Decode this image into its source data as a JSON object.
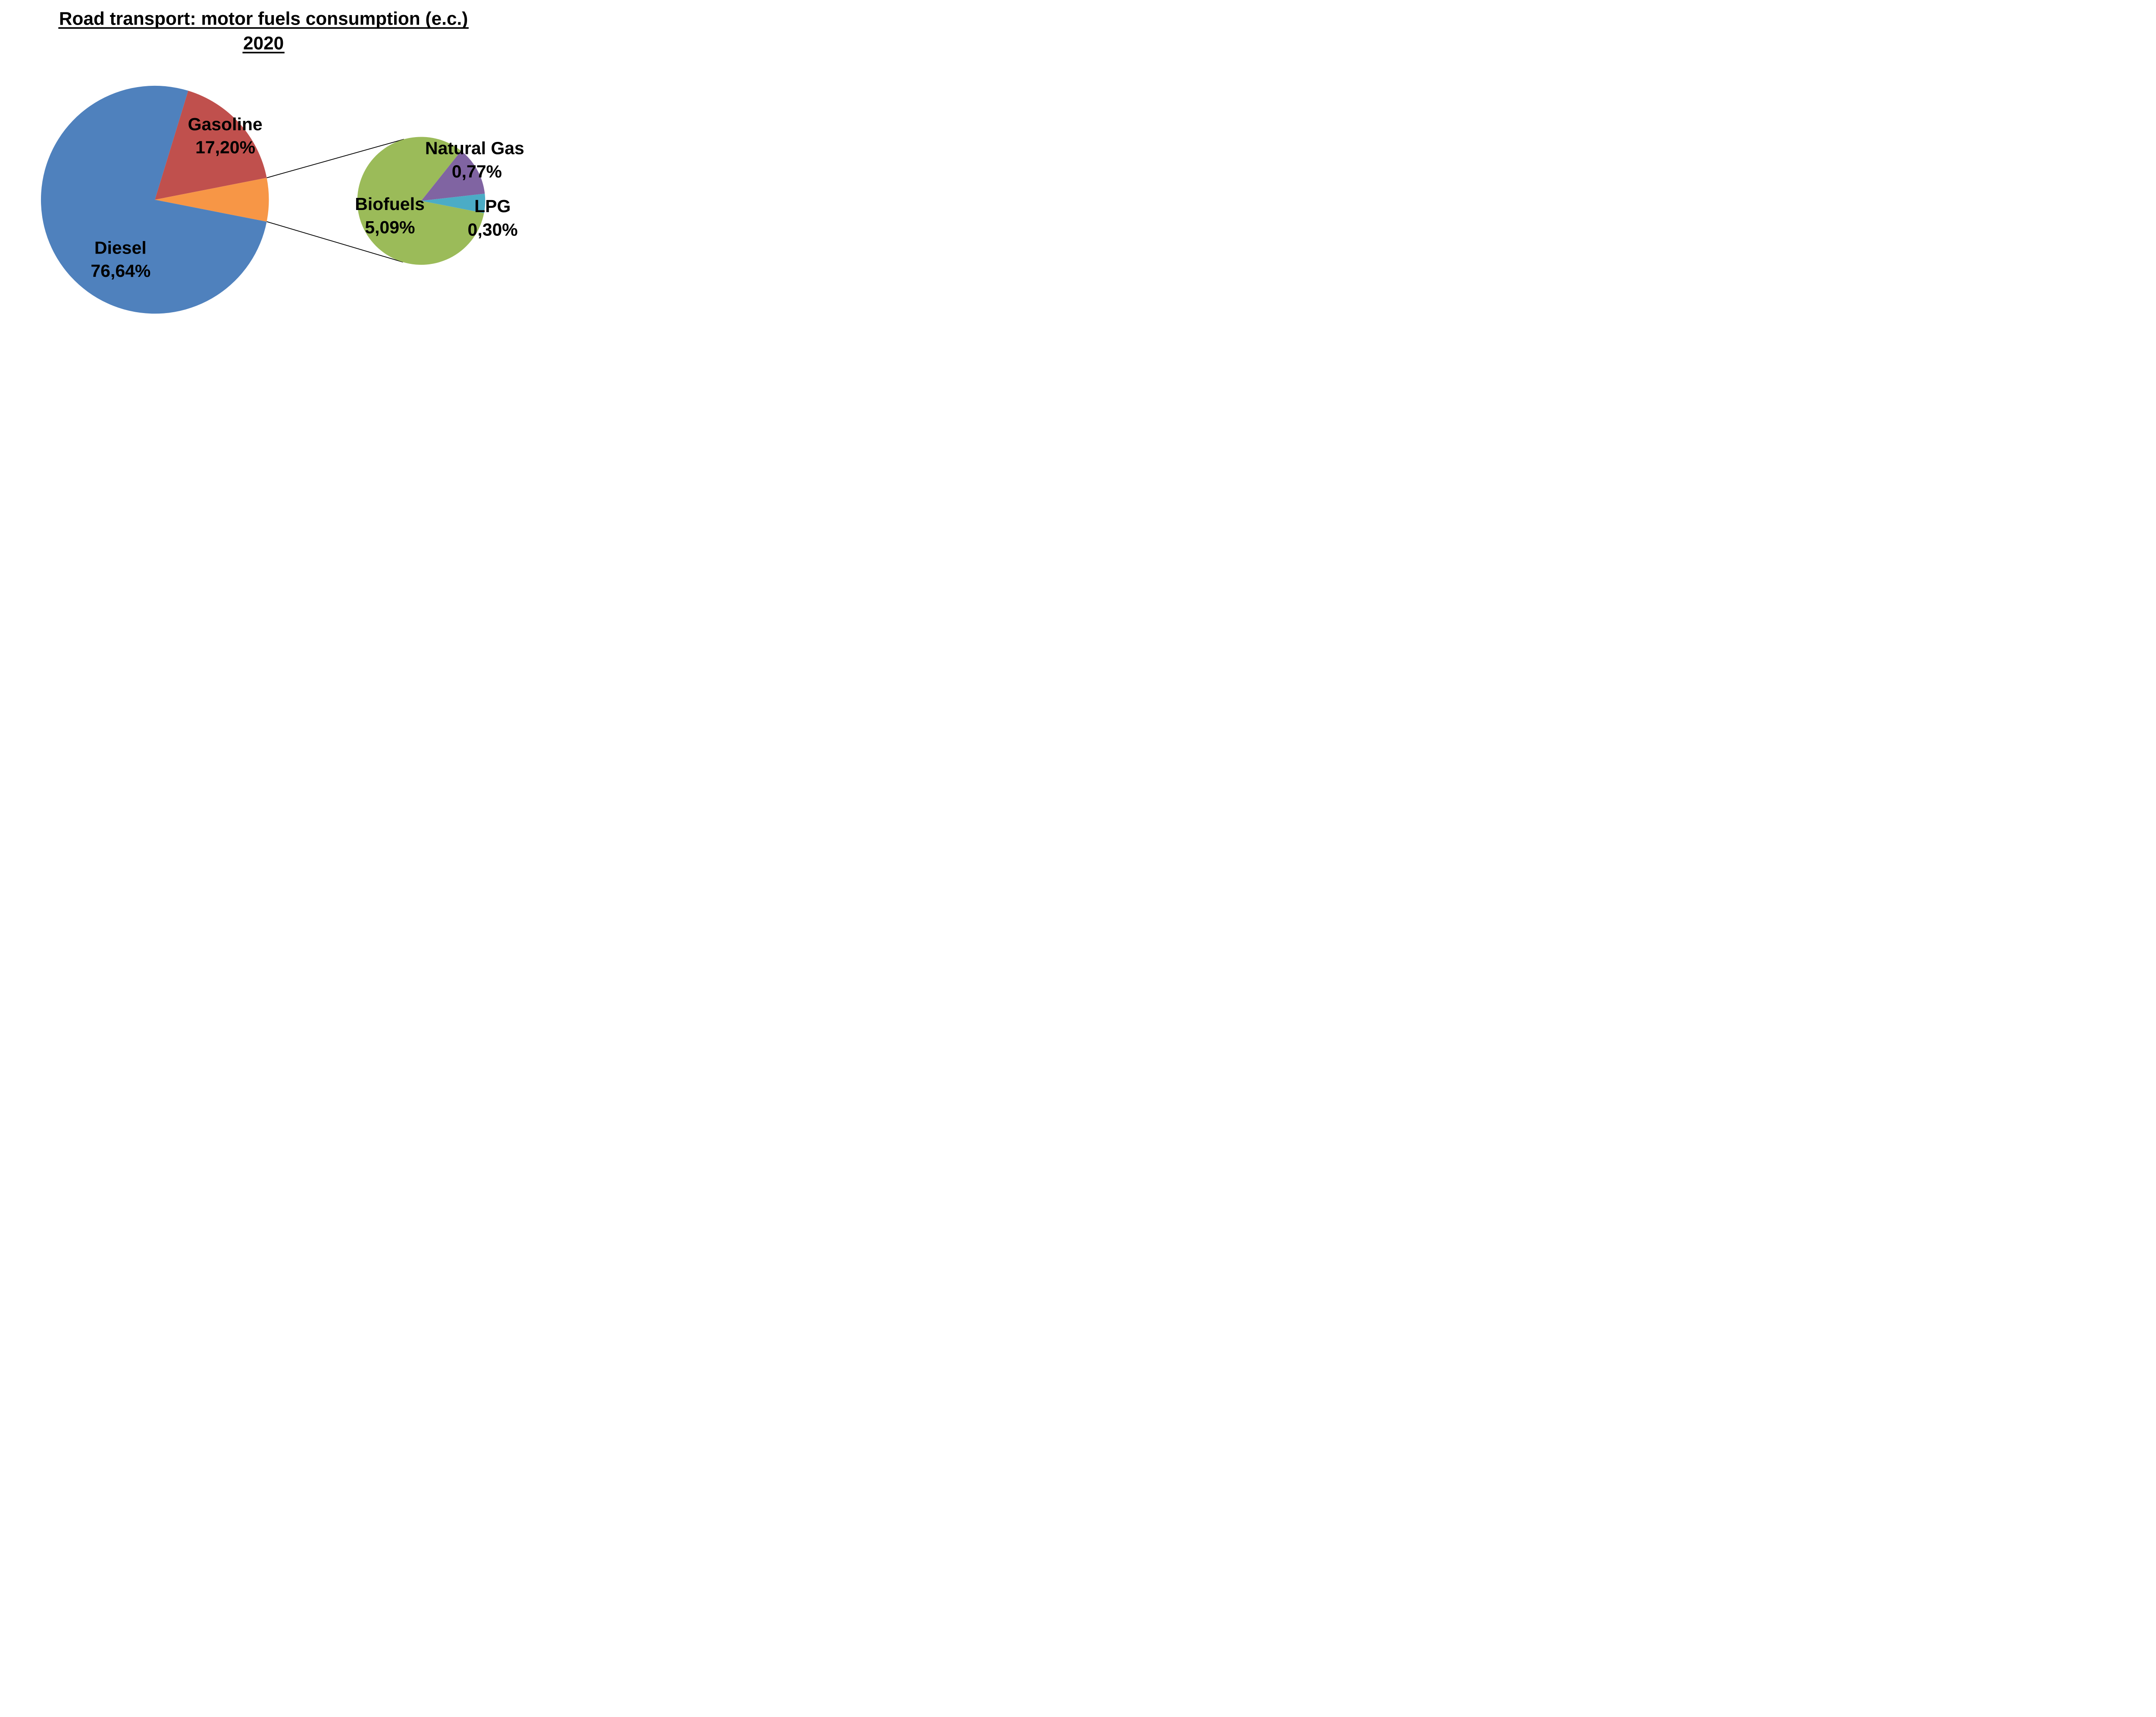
{
  "title": {
    "line1": "Road transport: motor fuels consumption (e.c.)",
    "line2": "2020"
  },
  "chart_data": {
    "type": "pie",
    "variant": "pie-of-pie",
    "title": "Road transport: motor fuels consumption (e.c.)",
    "subtitle": "2020",
    "value_format": "percent with comma decimal separator",
    "legend": "none",
    "background": "#FFFFFF",
    "connector_line_color": "#000000",
    "main_pie": {
      "slices": [
        {
          "label": "Diesel",
          "value": 76.64,
          "display_label": "Diesel",
          "display_value": "76,64%",
          "color": "#4F81BD",
          "is_other": false
        },
        {
          "label": "Gasoline",
          "value": 17.2,
          "display_label": "Gasoline",
          "display_value": "17,20%",
          "color": "#C0504D",
          "is_other": false
        },
        {
          "label": "Other (expanded in secondary pie)",
          "value": 6.16,
          "display_label": "",
          "display_value": "",
          "color": "#F79646",
          "is_other": true
        }
      ]
    },
    "secondary_pie": {
      "share_of_main": 6.16,
      "slices": [
        {
          "label": "Biofuels",
          "value": 5.09,
          "display_label": "Biofuels",
          "display_value": "5,09%",
          "color": "#9BBB59"
        },
        {
          "label": "Natural Gas",
          "value": 0.77,
          "display_label": "Natural Gas",
          "display_value": "0,77%",
          "color": "#8064A2"
        },
        {
          "label": "LPG",
          "value": 0.3,
          "display_label": "LPG",
          "display_value": "0,30%",
          "color": "#4BACC6"
        }
      ]
    }
  }
}
